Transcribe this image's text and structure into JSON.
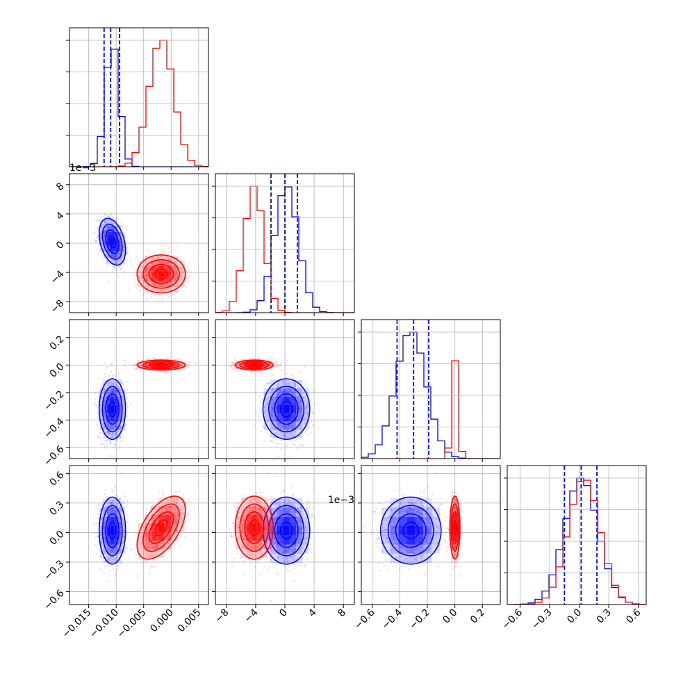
{
  "colors": {
    "series_a": "#0000ff",
    "series_b": "#ff0000",
    "grid": "#b0b0b0",
    "frame": "#000000"
  },
  "chart_data": {
    "type": "scatter",
    "style": "corner plot",
    "grid": true,
    "n_params": 4,
    "params": [
      {
        "range": [
          -0.0185,
          0.0068
        ],
        "ticks": [
          "−0.015",
          "−0.010",
          "−0.005",
          "0.000",
          "0.005"
        ],
        "tick_values": [
          -0.015,
          -0.01,
          -0.005,
          0.0,
          0.005
        ],
        "offset": ""
      },
      {
        "range": [
          -0.0095,
          0.0095
        ],
        "ticks": [
          "−8",
          "−4",
          "0",
          "4",
          "8"
        ],
        "tick_values": [
          -0.008,
          -0.004,
          0.0,
          0.004,
          0.008
        ],
        "offset": "1e−3"
      },
      {
        "range": [
          -0.68,
          0.33
        ],
        "ticks": [
          "−0.6",
          "−0.4",
          "−0.2",
          "0.0",
          "0.2"
        ],
        "tick_values": [
          -0.6,
          -0.4,
          -0.2,
          0.0,
          0.2
        ],
        "offset": ""
      },
      {
        "range": [
          -0.73,
          0.68
        ],
        "ticks": [
          "−0.6",
          "−0.3",
          "0.0",
          "0.3",
          "0.6"
        ],
        "tick_values": [
          -0.6,
          -0.3,
          0.0,
          0.3,
          0.6
        ],
        "offset": ""
      }
    ],
    "diagonal_offset_labels": [
      "",
      "1e−3",
      "",
      ""
    ],
    "series": [
      {
        "color": "#0000ff",
        "mean": [
          -0.0107,
          0.0002,
          -0.32,
          0.02
        ],
        "std": [
          0.0012,
          0.0016,
          0.11,
          0.17
        ],
        "corr": [
          [
            1,
            -0.35,
            0,
            0
          ],
          [
            -0.35,
            1,
            0,
            0
          ],
          [
            0,
            0,
            1,
            0
          ],
          [
            0,
            0,
            0,
            1
          ]
        ],
        "quantiles": [
          [
            -0.0122,
            -0.011,
            -0.0094
          ],
          [
            -0.0019,
            0.0,
            0.0017
          ],
          [
            -0.42,
            -0.3,
            -0.19
          ],
          [
            -0.15,
            0.02,
            0.18
          ]
        ]
      },
      {
        "color": "#ff0000",
        "mean": [
          -0.0018,
          -0.0042,
          0.0,
          0.05
        ],
        "std": [
          0.0022,
          0.0013,
          0.018,
          0.16
        ],
        "corr": [
          [
            1,
            0,
            0,
            0.55
          ],
          [
            0,
            1,
            0,
            0
          ],
          [
            0,
            0,
            1,
            0
          ],
          [
            0.55,
            0,
            0,
            1
          ]
        ],
        "quantiles": null
      }
    ]
  }
}
